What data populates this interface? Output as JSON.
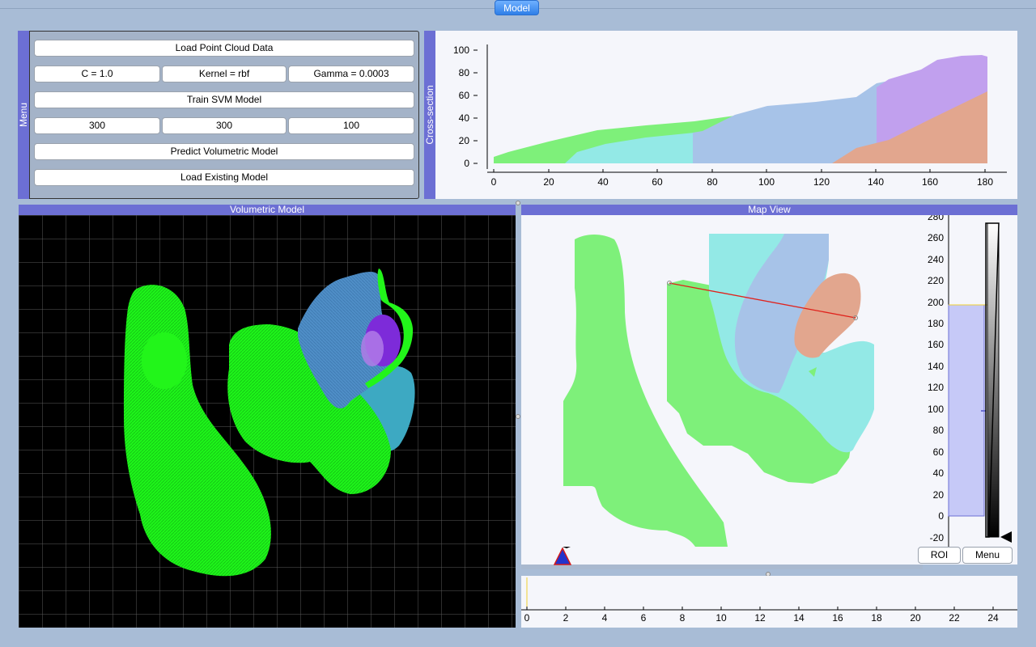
{
  "top_tab": "Model",
  "menu": {
    "tab_label": "Menu",
    "load_point_cloud": "Load Point Cloud Data",
    "param_c": "C = 1.0",
    "param_kernel": "Kernel = rbf",
    "param_gamma": "Gamma = 0.0003",
    "train_svm": "Train SVM Model",
    "grid_x": "300",
    "grid_y": "300",
    "grid_z": "100",
    "predict_volumetric": "Predict Volumetric Model",
    "load_existing": "Load Existing Model"
  },
  "cross_section": {
    "tab_label": "Cross-section",
    "x_ticks": [
      "0",
      "20",
      "40",
      "60",
      "80",
      "100",
      "120",
      "140",
      "160",
      "180"
    ],
    "y_ticks": [
      "0",
      "20",
      "40",
      "60",
      "80",
      "100"
    ]
  },
  "volumetric": {
    "title": "Volumetric Model"
  },
  "map_view": {
    "title": "Map View",
    "color_scale_ticks": [
      "280",
      "260",
      "240",
      "220",
      "200",
      "180",
      "160",
      "140",
      "120",
      "100",
      "80",
      "60",
      "40",
      "20",
      "0",
      "-20"
    ],
    "roi_button": "ROI",
    "menu_button": "Menu"
  },
  "timeline": {
    "ticks": [
      "0",
      "2",
      "4",
      "6",
      "8",
      "10",
      "12",
      "14",
      "16",
      "18",
      "20",
      "22",
      "24"
    ]
  },
  "colors": {
    "green": "#7ef07a",
    "cyan": "#93e9e6",
    "blue": "#a7c3e8",
    "salmon": "#e2a68e",
    "purple": "#c1a0ee",
    "accent": "#6c6fd4",
    "bright_green": "#22f51a"
  }
}
